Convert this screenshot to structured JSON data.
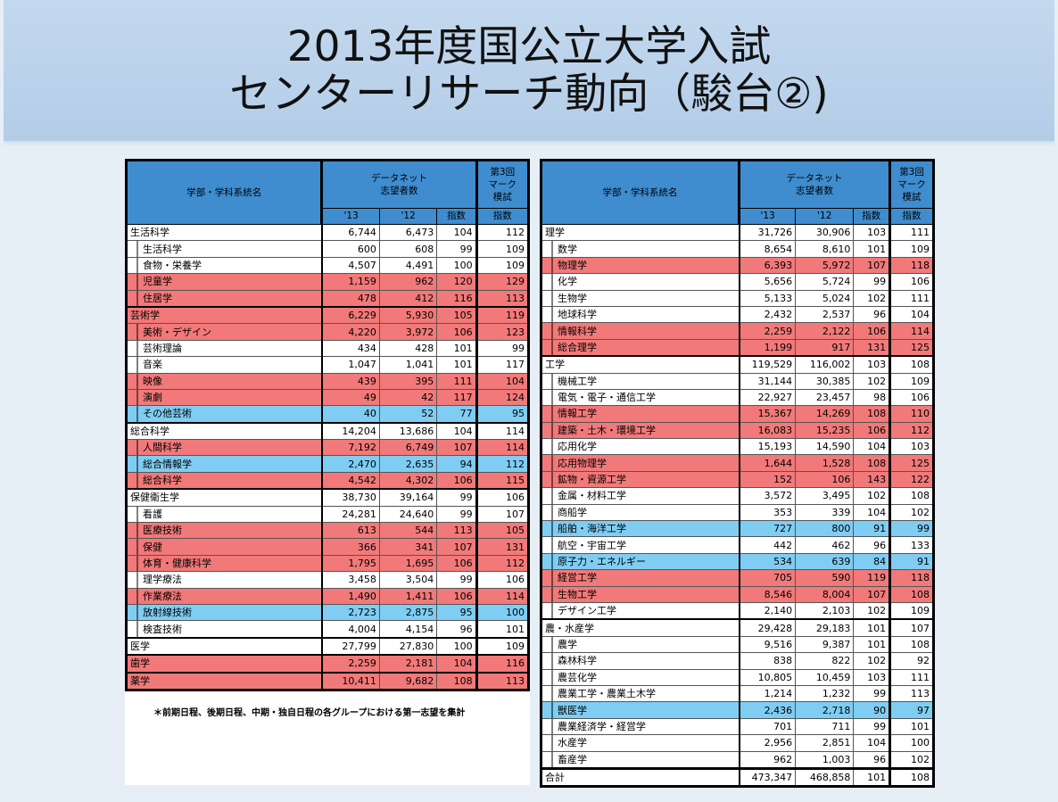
{
  "title": {
    "line1": "2013年度国公立大学入試",
    "line2": "センターリサーチ動向（駿台②)"
  },
  "header": {
    "name": "学部・学科系統名",
    "datanet_line1": "データネット",
    "datanet_line2": "志望者数",
    "mark_line1": "第3回",
    "mark_line2": "マーク",
    "mark_line3": "模試",
    "y13": "'13",
    "y12": "'12",
    "idx": "指数",
    "mark_idx": "指数"
  },
  "colors": {
    "red": "#f27979",
    "blue": "#7fcdf3",
    "header": "#3f8ccf"
  },
  "left_rows": [
    {
      "name": "生活科学",
      "v13": "6,744",
      "v12": "6,473",
      "idx": "104",
      "mark": "112",
      "level": 0,
      "hl": ""
    },
    {
      "name": "生活科学",
      "v13": "600",
      "v12": "608",
      "idx": "99",
      "mark": "109",
      "level": 1,
      "hl": ""
    },
    {
      "name": "食物・栄養学",
      "v13": "4,507",
      "v12": "4,491",
      "idx": "100",
      "mark": "109",
      "level": 1,
      "hl": ""
    },
    {
      "name": "児童学",
      "v13": "1,159",
      "v12": "962",
      "idx": "120",
      "mark": "129",
      "level": 1,
      "hl": "red"
    },
    {
      "name": "住居学",
      "v13": "478",
      "v12": "412",
      "idx": "116",
      "mark": "113",
      "level": 1,
      "hl": "red"
    },
    {
      "name": "芸術学",
      "v13": "6,229",
      "v12": "5,930",
      "idx": "105",
      "mark": "119",
      "level": 0,
      "hl": "red"
    },
    {
      "name": "美術・デザイン",
      "v13": "4,220",
      "v12": "3,972",
      "idx": "106",
      "mark": "123",
      "level": 1,
      "hl": "red"
    },
    {
      "name": "芸術理論",
      "v13": "434",
      "v12": "428",
      "idx": "101",
      "mark": "99",
      "level": 1,
      "hl": ""
    },
    {
      "name": "音楽",
      "v13": "1,047",
      "v12": "1,041",
      "idx": "101",
      "mark": "117",
      "level": 1,
      "hl": ""
    },
    {
      "name": "映像",
      "v13": "439",
      "v12": "395",
      "idx": "111",
      "mark": "104",
      "level": 1,
      "hl": "red"
    },
    {
      "name": "演劇",
      "v13": "49",
      "v12": "42",
      "idx": "117",
      "mark": "124",
      "level": 1,
      "hl": "red"
    },
    {
      "name": "その他芸術",
      "v13": "40",
      "v12": "52",
      "idx": "77",
      "mark": "95",
      "level": 1,
      "hl": "blue"
    },
    {
      "name": "総合科学",
      "v13": "14,204",
      "v12": "13,686",
      "idx": "104",
      "mark": "114",
      "level": 0,
      "hl": ""
    },
    {
      "name": "人間科学",
      "v13": "7,192",
      "v12": "6,749",
      "idx": "107",
      "mark": "114",
      "level": 1,
      "hl": "red"
    },
    {
      "name": "総合情報学",
      "v13": "2,470",
      "v12": "2,635",
      "idx": "94",
      "mark": "112",
      "level": 1,
      "hl": "blue"
    },
    {
      "name": "総合科学",
      "v13": "4,542",
      "v12": "4,302",
      "idx": "106",
      "mark": "115",
      "level": 1,
      "hl": "red"
    },
    {
      "name": "保健衛生学",
      "v13": "38,730",
      "v12": "39,164",
      "idx": "99",
      "mark": "106",
      "level": 0,
      "hl": ""
    },
    {
      "name": "看護",
      "v13": "24,281",
      "v12": "24,640",
      "idx": "99",
      "mark": "107",
      "level": 1,
      "hl": ""
    },
    {
      "name": "医療技術",
      "v13": "613",
      "v12": "544",
      "idx": "113",
      "mark": "105",
      "level": 1,
      "hl": "red"
    },
    {
      "name": "保健",
      "v13": "366",
      "v12": "341",
      "idx": "107",
      "mark": "131",
      "level": 1,
      "hl": "red"
    },
    {
      "name": "体育・健康科学",
      "v13": "1,795",
      "v12": "1,695",
      "idx": "106",
      "mark": "112",
      "level": 1,
      "hl": "red"
    },
    {
      "name": "理学療法",
      "v13": "3,458",
      "v12": "3,504",
      "idx": "99",
      "mark": "106",
      "level": 1,
      "hl": ""
    },
    {
      "name": "作業療法",
      "v13": "1,490",
      "v12": "1,411",
      "idx": "106",
      "mark": "114",
      "level": 1,
      "hl": "red"
    },
    {
      "name": "放射線技術",
      "v13": "2,723",
      "v12": "2,875",
      "idx": "95",
      "mark": "100",
      "level": 1,
      "hl": "blue"
    },
    {
      "name": "検査技術",
      "v13": "4,004",
      "v12": "4,154",
      "idx": "96",
      "mark": "101",
      "level": 1,
      "hl": ""
    },
    {
      "name": "医学",
      "v13": "27,799",
      "v12": "27,830",
      "idx": "100",
      "mark": "109",
      "level": 0,
      "hl": ""
    },
    {
      "name": "歯学",
      "v13": "2,259",
      "v12": "2,181",
      "idx": "104",
      "mark": "116",
      "level": 0,
      "hl": "red"
    },
    {
      "name": "薬学",
      "v13": "10,411",
      "v12": "9,682",
      "idx": "108",
      "mark": "113",
      "level": 0,
      "hl": "red"
    }
  ],
  "right_rows": [
    {
      "name": "理学",
      "v13": "31,726",
      "v12": "30,906",
      "idx": "103",
      "mark": "111",
      "level": 0,
      "hl": ""
    },
    {
      "name": "数学",
      "v13": "8,654",
      "v12": "8,610",
      "idx": "101",
      "mark": "109",
      "level": 1,
      "hl": ""
    },
    {
      "name": "物理学",
      "v13": "6,393",
      "v12": "5,972",
      "idx": "107",
      "mark": "118",
      "level": 1,
      "hl": "red"
    },
    {
      "name": "化学",
      "v13": "5,656",
      "v12": "5,724",
      "idx": "99",
      "mark": "106",
      "level": 1,
      "hl": ""
    },
    {
      "name": "生物学",
      "v13": "5,133",
      "v12": "5,024",
      "idx": "102",
      "mark": "111",
      "level": 1,
      "hl": ""
    },
    {
      "name": "地球科学",
      "v13": "2,432",
      "v12": "2,537",
      "idx": "96",
      "mark": "104",
      "level": 1,
      "hl": ""
    },
    {
      "name": "情報科学",
      "v13": "2,259",
      "v12": "2,122",
      "idx": "106",
      "mark": "114",
      "level": 1,
      "hl": "red"
    },
    {
      "name": "総合理学",
      "v13": "1,199",
      "v12": "917",
      "idx": "131",
      "mark": "125",
      "level": 1,
      "hl": "red"
    },
    {
      "name": "工学",
      "v13": "119,529",
      "v12": "116,002",
      "idx": "103",
      "mark": "108",
      "level": 0,
      "hl": ""
    },
    {
      "name": "機械工学",
      "v13": "31,144",
      "v12": "30,385",
      "idx": "102",
      "mark": "109",
      "level": 1,
      "hl": ""
    },
    {
      "name": "電気・電子・通信工学",
      "v13": "22,927",
      "v12": "23,457",
      "idx": "98",
      "mark": "106",
      "level": 1,
      "hl": ""
    },
    {
      "name": "情報工学",
      "v13": "15,367",
      "v12": "14,269",
      "idx": "108",
      "mark": "110",
      "level": 1,
      "hl": "red"
    },
    {
      "name": "建築・土木・環境工学",
      "v13": "16,083",
      "v12": "15,235",
      "idx": "106",
      "mark": "112",
      "level": 1,
      "hl": "red"
    },
    {
      "name": "応用化学",
      "v13": "15,193",
      "v12": "14,590",
      "idx": "104",
      "mark": "103",
      "level": 1,
      "hl": ""
    },
    {
      "name": "応用物理学",
      "v13": "1,644",
      "v12": "1,528",
      "idx": "108",
      "mark": "125",
      "level": 1,
      "hl": "red"
    },
    {
      "name": "鉱物・資源工学",
      "v13": "152",
      "v12": "106",
      "idx": "143",
      "mark": "122",
      "level": 1,
      "hl": "red"
    },
    {
      "name": "金属・材料工学",
      "v13": "3,572",
      "v12": "3,495",
      "idx": "102",
      "mark": "108",
      "level": 1,
      "hl": ""
    },
    {
      "name": "商船学",
      "v13": "353",
      "v12": "339",
      "idx": "104",
      "mark": "102",
      "level": 1,
      "hl": ""
    },
    {
      "name": "船舶・海洋工学",
      "v13": "727",
      "v12": "800",
      "idx": "91",
      "mark": "99",
      "level": 1,
      "hl": "blue"
    },
    {
      "name": "航空・宇宙工学",
      "v13": "442",
      "v12": "462",
      "idx": "96",
      "mark": "133",
      "level": 1,
      "hl": ""
    },
    {
      "name": "原子力・エネルギー",
      "v13": "534",
      "v12": "639",
      "idx": "84",
      "mark": "91",
      "level": 1,
      "hl": "blue"
    },
    {
      "name": "経営工学",
      "v13": "705",
      "v12": "590",
      "idx": "119",
      "mark": "118",
      "level": 1,
      "hl": "red"
    },
    {
      "name": "生物工学",
      "v13": "8,546",
      "v12": "8,004",
      "idx": "107",
      "mark": "108",
      "level": 1,
      "hl": "red"
    },
    {
      "name": "デザイン工学",
      "v13": "2,140",
      "v12": "2,103",
      "idx": "102",
      "mark": "109",
      "level": 1,
      "hl": ""
    },
    {
      "name": "農・水産学",
      "v13": "29,428",
      "v12": "29,183",
      "idx": "101",
      "mark": "107",
      "level": 0,
      "hl": ""
    },
    {
      "name": "農学",
      "v13": "9,516",
      "v12": "9,387",
      "idx": "101",
      "mark": "108",
      "level": 1,
      "hl": ""
    },
    {
      "name": "森林科学",
      "v13": "838",
      "v12": "822",
      "idx": "102",
      "mark": "92",
      "level": 1,
      "hl": ""
    },
    {
      "name": "農芸化学",
      "v13": "10,805",
      "v12": "10,459",
      "idx": "103",
      "mark": "111",
      "level": 1,
      "hl": ""
    },
    {
      "name": "農業工学・農業土木学",
      "v13": "1,214",
      "v12": "1,232",
      "idx": "99",
      "mark": "113",
      "level": 1,
      "hl": ""
    },
    {
      "name": "獣医学",
      "v13": "2,436",
      "v12": "2,718",
      "idx": "90",
      "mark": "97",
      "level": 1,
      "hl": "blue"
    },
    {
      "name": "農業経済学・経営学",
      "v13": "701",
      "v12": "711",
      "idx": "99",
      "mark": "101",
      "level": 1,
      "hl": ""
    },
    {
      "name": "水産学",
      "v13": "2,956",
      "v12": "2,851",
      "idx": "104",
      "mark": "100",
      "level": 1,
      "hl": ""
    },
    {
      "name": "畜産学",
      "v13": "962",
      "v12": "1,003",
      "idx": "96",
      "mark": "102",
      "level": 1,
      "hl": ""
    },
    {
      "name": "合計",
      "v13": "473,347",
      "v12": "468,858",
      "idx": "101",
      "mark": "108",
      "level": 0,
      "hl": "",
      "total": true
    }
  ],
  "note": "＊前期日程、後期日程、中期・独自日程の各グループにおける第一志望を集計"
}
